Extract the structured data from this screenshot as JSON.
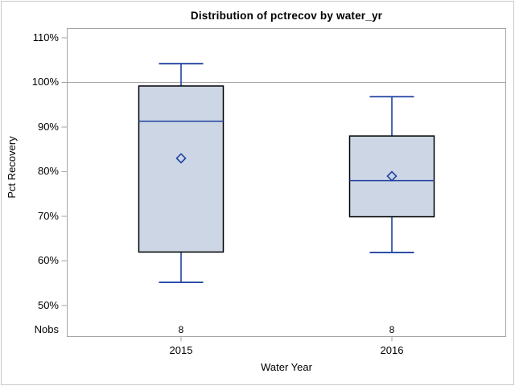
{
  "chart": {
    "title": "Distribution of pctrecov by water_yr",
    "xlabel": "Water Year",
    "ylabel": "Pct Recovery",
    "nobs_row_label": "Nobs"
  },
  "yaxis": {
    "tick_labels": [
      "110%",
      "100%",
      "90%",
      "80%",
      "70%",
      "60%",
      "50%"
    ]
  },
  "chart_data": {
    "type": "boxplot",
    "title": "Distribution of pctrecov by water_yr",
    "xlabel": "Water Year",
    "ylabel": "Pct Recovery",
    "categories": [
      "2015",
      "2016"
    ],
    "series": [
      {
        "category": "2015",
        "nobs": "8",
        "min": 55.2,
        "q1": 62.0,
        "median": 91.3,
        "q3": 99.2,
        "max": 104.2,
        "mean": 83.0
      },
      {
        "category": "2016",
        "nobs": "8",
        "min": 61.9,
        "q1": 69.9,
        "median": 78.0,
        "q3": 88.0,
        "max": 96.8,
        "mean": 79.0
      }
    ],
    "yticks": [
      110,
      100,
      90,
      80,
      70,
      60,
      50
    ],
    "ytick_format": "percent",
    "ylim": [
      43,
      112
    ],
    "reference_line": 100,
    "grid": false,
    "legend": "none",
    "mean_marker": "open-diamond",
    "colors": {
      "box_fill": "#ccd6e5",
      "box_border": "#000000",
      "whisker": "#1f419f",
      "median": "#1f419f",
      "mean_marker": "#1f419f",
      "frame": "#a5a5a5",
      "reference_line": "#a8a8a8",
      "outer_border": "#c9c9c9",
      "text": "#000000",
      "background": "#ffffff"
    }
  }
}
